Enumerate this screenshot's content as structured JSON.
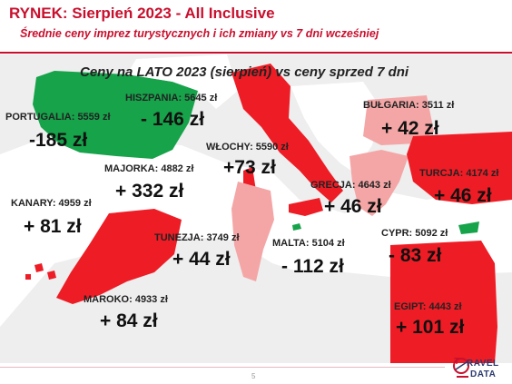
{
  "title": "RYNEK: Sierpień 2023 - All Inclusive",
  "subtitle": "Średnie ceny imprez turystycznych i ich zmiany vs 7 dni wcześniej",
  "heading": "Ceny na LATO 2023 (sierpień) vs ceny sprzed 7 dni",
  "colors": {
    "accent": "#c8102e",
    "decrease": "#16a34a",
    "increase_strong": "#ee1c25",
    "increase_light": "#f4a6a6"
  },
  "destinations": {
    "portugal": {
      "label": "PORTUGALIA: 5559 zł",
      "change": "-185 zł"
    },
    "spain": {
      "label": "HISZPANIA: 5645 zł",
      "change": "- 146 zł"
    },
    "italy": {
      "label": "WŁOCHY: 5590 zł",
      "change": "+73 zł"
    },
    "bulgaria": {
      "label": "BUŁGARIA: 3511 zł",
      "change": "+ 42 zł"
    },
    "majorca": {
      "label": "MAJORKA: 4882 zł",
      "change": "+ 332 zł"
    },
    "turkey": {
      "label": "TURCJA: 4174 zł",
      "change": "+ 46 zł"
    },
    "greece": {
      "label": "GRECJA: 4643 zł",
      "change": "+ 46 zł"
    },
    "canary": {
      "label": "KANARY: 4959 zł",
      "change": "+ 81 zł"
    },
    "tunisia": {
      "label": "TUNEZJA: 3749 zł",
      "change": "+ 44 zł"
    },
    "malta": {
      "label": "MALTA: 5104 zł",
      "change": "- 112 zł"
    },
    "cyprus": {
      "label": "CYPR: 5092 zł",
      "change": "- 83 zł"
    },
    "morocco": {
      "label": "MAROKO: 4933 zł",
      "change": "+ 84 zł"
    },
    "egypt": {
      "label": "EGIPT: 4443 zł",
      "change": "+ 101 zł"
    }
  },
  "page_number": "5",
  "logo": {
    "line1": "RAVEL",
    "line2": "DATA",
    "letter": "T"
  }
}
